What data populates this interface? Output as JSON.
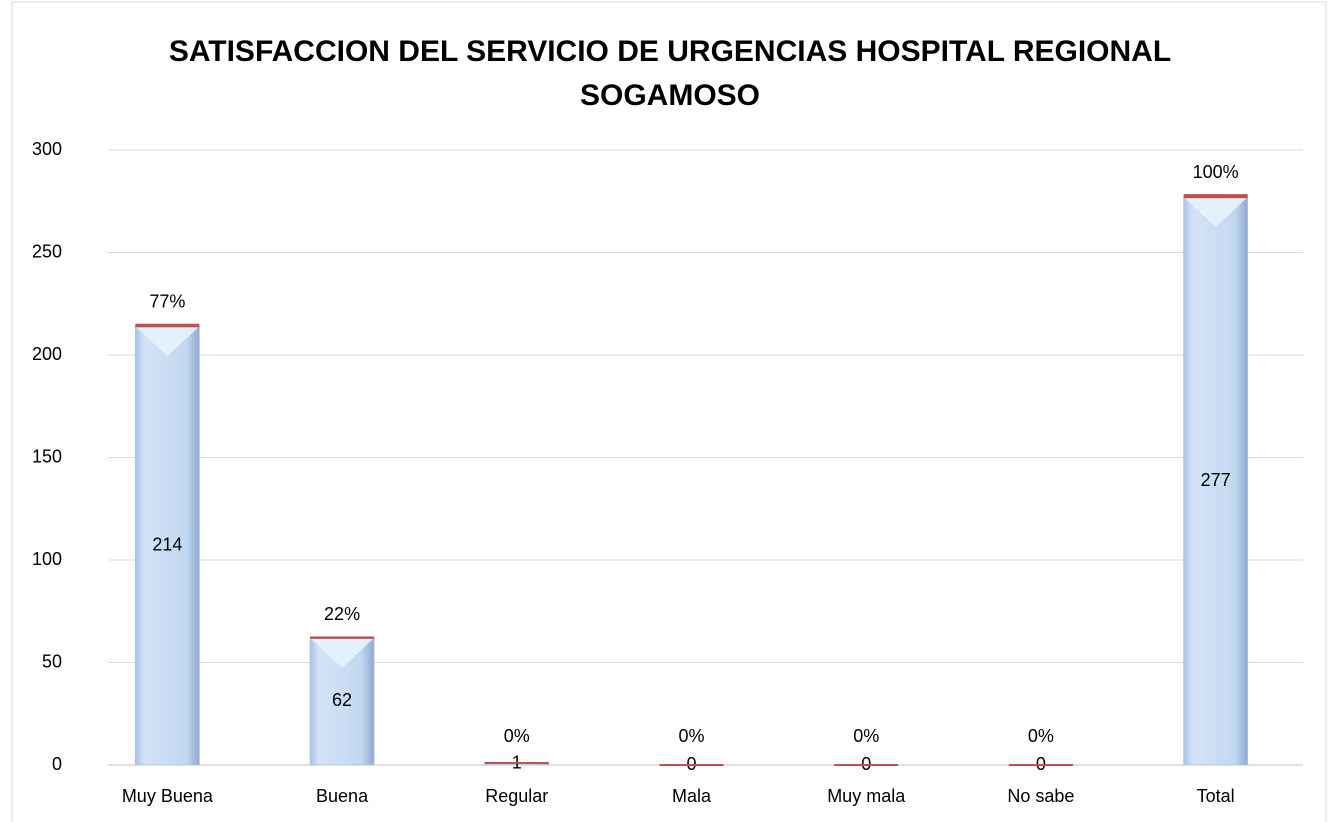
{
  "chart_data": {
    "type": "bar",
    "title": "SATISFACCION DEL SERVICIO DE URGENCIAS HOSPITAL REGIONAL SOGAMOSO",
    "categories": [
      "Muy Buena",
      "Buena",
      "Regular",
      "Mala",
      "Muy mala",
      "No sabe",
      "Total"
    ],
    "series": [
      {
        "color": "#c6d9f1",
        "values": [
          214,
          62,
          1,
          0,
          0,
          0,
          277
        ]
      },
      {
        "color": "#c0504d",
        "values": [
          0.77,
          0.22,
          0,
          0,
          0,
          0,
          1
        ],
        "value_labels": [
          "77%",
          "22%",
          "0%",
          "0%",
          "0%",
          "0%",
          "100%"
        ]
      }
    ],
    "stacked": true,
    "ylim": [
      0,
      300
    ],
    "yticks": [
      0,
      50,
      100,
      150,
      200,
      250,
      300
    ],
    "grid": true
  }
}
